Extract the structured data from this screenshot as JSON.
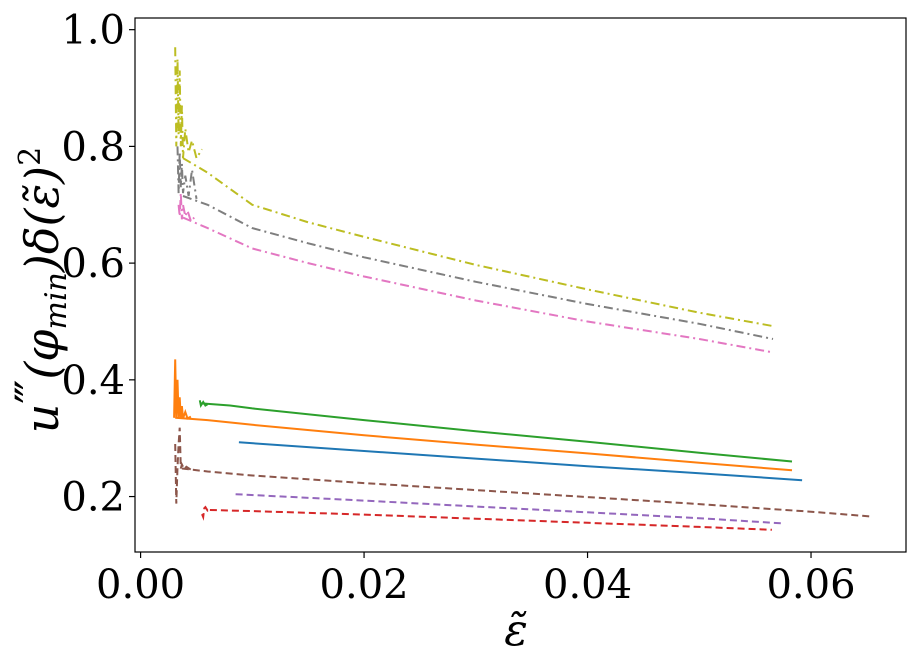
{
  "chart_data": {
    "type": "line",
    "xlabel": "ε̃",
    "ylabel_parts": {
      "main": "u",
      "primes": "‴",
      "arg": "(φ",
      "sub": "min",
      "rest": ")δ(ε̃)",
      "sup": "2"
    },
    "xlim": [
      -0.0005,
      0.0685
    ],
    "ylim": [
      0.105,
      1.02
    ],
    "xticks": [
      0.0,
      0.02,
      0.04,
      0.06
    ],
    "xtick_labels": [
      "0.00",
      "0.02",
      "0.04",
      "0.06"
    ],
    "yticks": [
      0.2,
      0.4,
      0.6,
      0.8,
      1.0
    ],
    "ytick_labels": [
      "0.2",
      "0.4",
      "0.6",
      "0.8",
      "1.0"
    ],
    "series": [
      {
        "color": "#1f77b4",
        "style": "solid",
        "x": [
          0.0088,
          0.02,
          0.03,
          0.04,
          0.05,
          0.0592
        ],
        "y": [
          0.293,
          0.278,
          0.265,
          0.252,
          0.24,
          0.228
        ]
      },
      {
        "color": "#ff7f0e",
        "style": "solid",
        "x": [
          0.0031,
          0.0045,
          0.006,
          0.01,
          0.02,
          0.03,
          0.04,
          0.05,
          0.0583
        ],
        "y": [
          0.335,
          0.333,
          0.331,
          0.323,
          0.305,
          0.289,
          0.274,
          0.258,
          0.245
        ]
      },
      {
        "color": "#2ca02c",
        "style": "solid",
        "x": [
          0.0053,
          0.008,
          0.01,
          0.02,
          0.03,
          0.04,
          0.05,
          0.0583
        ],
        "y": [
          0.36,
          0.356,
          0.351,
          0.331,
          0.312,
          0.294,
          0.275,
          0.26
        ]
      },
      {
        "color": "#d62728",
        "style": "dashed",
        "x": [
          0.0062,
          0.01,
          0.02,
          0.03,
          0.04,
          0.05,
          0.0565
        ],
        "y": [
          0.177,
          0.175,
          0.169,
          0.162,
          0.155,
          0.148,
          0.143
        ]
      },
      {
        "color": "#9467bd",
        "style": "dashed",
        "x": [
          0.0085,
          0.02,
          0.03,
          0.04,
          0.05,
          0.0575
        ],
        "y": [
          0.204,
          0.193,
          0.183,
          0.173,
          0.163,
          0.154
        ]
      },
      {
        "color": "#8c564b",
        "style": "dashed",
        "x": [
          0.0037,
          0.006,
          0.01,
          0.02,
          0.03,
          0.04,
          0.05,
          0.06,
          0.0653
        ],
        "y": [
          0.248,
          0.243,
          0.236,
          0.223,
          0.211,
          0.199,
          0.187,
          0.174,
          0.166
        ]
      },
      {
        "color": "#e377c2",
        "style": "dashdot",
        "x": [
          0.0038,
          0.006,
          0.01,
          0.015,
          0.02,
          0.03,
          0.04,
          0.05,
          0.0566
        ],
        "y": [
          0.678,
          0.66,
          0.625,
          0.6,
          0.577,
          0.536,
          0.5,
          0.47,
          0.447
        ]
      },
      {
        "color": "#7f7f7f",
        "style": "dashdot",
        "x": [
          0.0038,
          0.006,
          0.01,
          0.015,
          0.02,
          0.03,
          0.04,
          0.05,
          0.0566
        ],
        "y": [
          0.715,
          0.7,
          0.66,
          0.634,
          0.61,
          0.568,
          0.53,
          0.496,
          0.47
        ]
      },
      {
        "color": "#bcbd22",
        "style": "dashdot",
        "x": [
          0.0038,
          0.006,
          0.01,
          0.015,
          0.02,
          0.03,
          0.04,
          0.05,
          0.0566
        ],
        "y": [
          0.78,
          0.755,
          0.7,
          0.67,
          0.645,
          0.597,
          0.555,
          0.515,
          0.492
        ]
      }
    ],
    "spikes": [
      {
        "color": "#ff7f0e",
        "style": "solid",
        "x": [
          0.003,
          0.0031,
          0.0032,
          0.0033,
          0.0034,
          0.0035,
          0.0036,
          0.0037,
          0.0038,
          0.004,
          0.0042,
          0.0045
        ],
        "y": [
          0.335,
          0.435,
          0.335,
          0.4,
          0.336,
          0.37,
          0.334,
          0.355,
          0.334,
          0.345,
          0.334,
          0.337
        ]
      },
      {
        "color": "#2ca02c",
        "style": "solid",
        "x": [
          0.0053,
          0.0054,
          0.0056,
          0.0058,
          0.006
        ],
        "y": [
          0.365,
          0.356,
          0.362,
          0.356,
          0.358
        ]
      },
      {
        "color": "#8c564b",
        "style": "dashed",
        "x": [
          0.0031,
          0.0032,
          0.0033,
          0.0034,
          0.0035,
          0.0036,
          0.0037,
          0.0039,
          0.0041,
          0.0045
        ],
        "y": [
          0.29,
          0.188,
          0.25,
          0.29,
          0.318,
          0.248,
          0.255,
          0.247,
          0.251,
          0.246
        ]
      },
      {
        "color": "#d62728",
        "style": "dashed",
        "x": [
          0.0055,
          0.0056,
          0.0057,
          0.0058,
          0.006,
          0.0062
        ],
        "y": [
          0.17,
          0.165,
          0.18,
          0.182,
          0.176,
          0.178
        ]
      },
      {
        "color": "#bcbd22",
        "style": "dashdot",
        "x": [
          0.0031,
          0.0032,
          0.0033,
          0.0034,
          0.0035,
          0.0036,
          0.0037,
          0.0038,
          0.004,
          0.0043,
          0.0046,
          0.005,
          0.0055
        ],
        "y": [
          0.97,
          0.8,
          0.95,
          0.82,
          0.93,
          0.8,
          0.87,
          0.78,
          0.83,
          0.79,
          0.81,
          0.78,
          0.795
        ]
      },
      {
        "color": "#7f7f7f",
        "style": "dashdot",
        "x": [
          0.0033,
          0.0034,
          0.0035,
          0.0036,
          0.0037,
          0.0038,
          0.004,
          0.0043,
          0.0046,
          0.005
        ],
        "y": [
          0.8,
          0.72,
          0.79,
          0.73,
          0.77,
          0.72,
          0.75,
          0.715,
          0.76,
          0.71
        ]
      },
      {
        "color": "#e377c2",
        "style": "dashdot",
        "x": [
          0.0034,
          0.0035,
          0.0036,
          0.0037,
          0.0038,
          0.004,
          0.0042,
          0.0045,
          0.0048
        ],
        "y": [
          0.7,
          0.68,
          0.72,
          0.675,
          0.7,
          0.68,
          0.69,
          0.672,
          0.678
        ]
      }
    ]
  }
}
